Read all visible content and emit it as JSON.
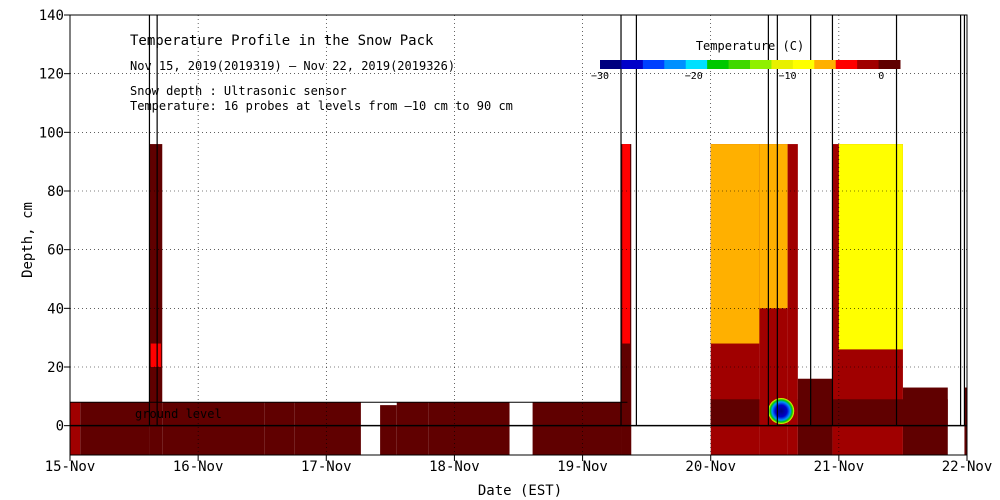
{
  "chart_data": {
    "type": "heatmap",
    "title": "Temperature Profile in the Snow Pack",
    "subtitle": "Nov 15, 2019(2019319) – Nov 22, 2019(2019326)",
    "notes": [
      "Snow depth : Ultrasonic sensor",
      "Temperature: 16 probes at levels from –10 cm to 90 cm"
    ],
    "xlabel": "Date (EST)",
    "ylabel": "Depth, cm",
    "xlim": [
      15,
      22
    ],
    "ylim": [
      -10,
      140
    ],
    "x_ticks": [
      {
        "x": 15,
        "label": "15-Nov"
      },
      {
        "x": 16,
        "label": "16-Nov"
      },
      {
        "x": 17,
        "label": "17-Nov"
      },
      {
        "x": 18,
        "label": "18-Nov"
      },
      {
        "x": 19,
        "label": "19-Nov"
      },
      {
        "x": 20,
        "label": "20-Nov"
      },
      {
        "x": 21,
        "label": "21-Nov"
      },
      {
        "x": 22,
        "label": "22-Nov"
      }
    ],
    "y_ticks": [
      0,
      20,
      40,
      60,
      80,
      100,
      120,
      140
    ],
    "ground_label": "ground level",
    "colorbar": {
      "title": "Temperature (C)",
      "range": [
        -30,
        2
      ],
      "tick_labels": [
        {
          "value": -30,
          "label": "−30"
        },
        {
          "value": -20,
          "label": "−20"
        },
        {
          "value": -10,
          "label": "−10"
        },
        {
          "value": 0,
          "label": "0"
        }
      ],
      "colors": [
        "#00007f",
        "#0000c8",
        "#0040ff",
        "#0090ff",
        "#00e0ff",
        "#00c800",
        "#40d800",
        "#90f000",
        "#e8f000",
        "#ffff00",
        "#ffb000",
        "#ff0000",
        "#a00000",
        "#600000"
      ]
    },
    "heat_blocks": [
      {
        "x0": 15.0,
        "x1": 15.08,
        "y0": -10,
        "y1": 8,
        "temp": -0.5
      },
      {
        "x0": 15.08,
        "x1": 15.62,
        "y0": -10,
        "y1": 8,
        "temp": 0.5
      },
      {
        "x0": 15.62,
        "x1": 15.72,
        "y0": -10,
        "y1": 96,
        "temp": 1.0
      },
      {
        "x0": 15.63,
        "x1": 15.71,
        "y0": 20,
        "y1": 28,
        "temp": -3
      },
      {
        "x0": 15.72,
        "x1": 16.52,
        "y0": -10,
        "y1": 8,
        "temp": 0.5
      },
      {
        "x0": 16.52,
        "x1": 16.75,
        "y0": -10,
        "y1": 8,
        "temp": 1.0
      },
      {
        "x0": 16.75,
        "x1": 17.27,
        "y0": -10,
        "y1": 8,
        "temp": 0.5
      },
      {
        "x0": 17.42,
        "x1": 17.55,
        "y0": -10,
        "y1": 7,
        "temp": 0.5
      },
      {
        "x0": 17.55,
        "x1": 17.8,
        "y0": -10,
        "y1": 8,
        "temp": 1.0
      },
      {
        "x0": 17.8,
        "x1": 18.43,
        "y0": -10,
        "y1": 8,
        "temp": 0.5
      },
      {
        "x0": 18.61,
        "x1": 19.3,
        "y0": -10,
        "y1": 8,
        "temp": 1.0
      },
      {
        "x0": 19.3,
        "x1": 19.38,
        "y0": -10,
        "y1": 96,
        "temp": 0.5
      },
      {
        "x0": 19.31,
        "x1": 19.37,
        "y0": 28,
        "y1": 96,
        "temp": -4
      },
      {
        "x0": 20.0,
        "x1": 20.38,
        "y0": -10,
        "y1": 96,
        "temp": -0.5
      },
      {
        "x0": 20.0,
        "x1": 20.38,
        "y0": 28,
        "y1": 96,
        "temp": -5
      },
      {
        "x0": 20.0,
        "x1": 20.38,
        "y0": 0,
        "y1": 9,
        "temp": 1.0
      },
      {
        "x0": 20.38,
        "x1": 20.6,
        "y0": -10,
        "y1": 96,
        "temp": -1
      },
      {
        "x0": 20.38,
        "x1": 20.6,
        "y0": 40,
        "y1": 96,
        "temp": -6
      },
      {
        "x0": 20.6,
        "x1": 20.68,
        "y0": -10,
        "y1": 96,
        "temp": -2
      },
      {
        "x0": 20.68,
        "x1": 20.95,
        "y0": -10,
        "y1": 16,
        "temp": 0.0
      },
      {
        "x0": 20.68,
        "x1": 20.95,
        "y0": 0,
        "y1": 9,
        "temp": 1.0
      },
      {
        "x0": 20.95,
        "x1": 21.5,
        "y0": -10,
        "y1": 96,
        "temp": -0.5
      },
      {
        "x0": 21.0,
        "x1": 21.5,
        "y0": 26,
        "y1": 96,
        "temp": -9
      },
      {
        "x0": 20.95,
        "x1": 21.85,
        "y0": 0,
        "y1": 9,
        "temp": 1.0
      },
      {
        "x0": 21.5,
        "x1": 21.85,
        "y0": -10,
        "y1": 13,
        "temp": 0.0
      },
      {
        "x0": 21.98,
        "x1": 22.0,
        "y0": -10,
        "y1": 13,
        "temp": 0.0
      }
    ],
    "cold_spot": {
      "x": 20.55,
      "y": 5,
      "temp": -30
    },
    "snow_depth_baseline_cm": 8,
    "snow_depth_spikes_x": [
      15.62,
      15.68,
      19.3,
      19.42,
      20.45,
      20.52,
      20.78,
      20.95,
      21.45,
      21.95,
      21.98
    ]
  }
}
